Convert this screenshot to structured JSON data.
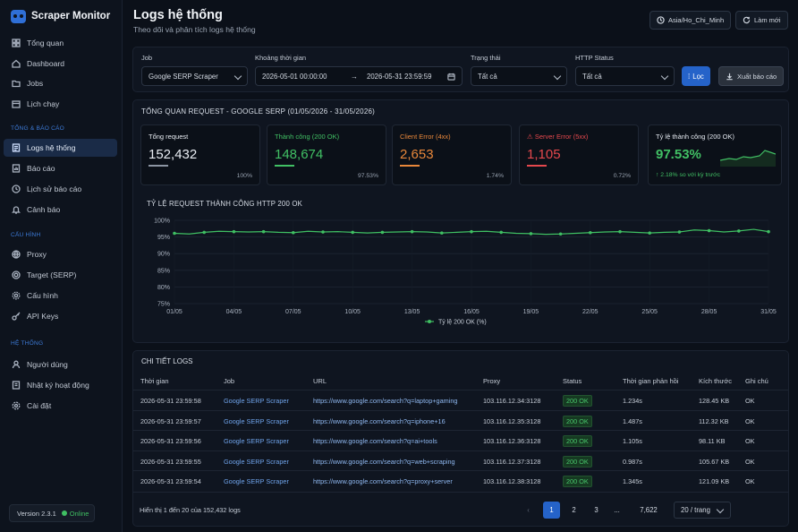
{
  "app": {
    "name": "Scraper Monitor",
    "version": "Version 2.3.1",
    "status": "Online"
  },
  "sidebar": {
    "items": [
      {
        "label": "Tổng quan",
        "icon": "grid-icon"
      },
      {
        "label": "Dashboard",
        "icon": "home-icon"
      },
      {
        "label": "Jobs",
        "icon": "folder-icon"
      },
      {
        "label": "Lịch chạy",
        "icon": "calendar-icon"
      }
    ],
    "sections": [
      "TỔNG & BÁO CÁO",
      "CẤU HÌNH",
      "HỆ THỐNG"
    ],
    "reports": [
      {
        "label": "Logs hệ thống",
        "icon": "logs-icon",
        "active": true
      },
      {
        "label": "Báo cáo",
        "icon": "report-icon"
      },
      {
        "label": "Lịch sử báo cáo",
        "icon": "history-icon"
      },
      {
        "label": "Cảnh báo",
        "icon": "bell-icon"
      }
    ],
    "config": [
      {
        "label": "Proxy",
        "icon": "globe-icon"
      },
      {
        "label": "Target (SERP)",
        "icon": "target-icon"
      },
      {
        "label": "Cấu hình",
        "icon": "gear-icon"
      },
      {
        "label": "API Keys",
        "icon": "key-icon"
      }
    ],
    "system": [
      {
        "label": "Người dùng",
        "icon": "users-icon"
      },
      {
        "label": "Nhật ký hoạt động",
        "icon": "journal-icon"
      },
      {
        "label": "Cài đặt",
        "icon": "settings-icon"
      }
    ]
  },
  "header": {
    "title": "Logs hệ thống",
    "subtitle": "Theo dõi và phân tích logs hệ thống",
    "timezone": "Asia/Ho_Chi_Minh",
    "refresh": "Làm mới"
  },
  "filters": {
    "job_label": "Job",
    "job_value": "Google SERP Scraper",
    "time_label": "Khoảng thời gian",
    "time_from": "2026-05-01 00:00:00",
    "time_to": "2026-05-31 23:59:59",
    "status_label": "Trạng thái",
    "status_value": "Tất cả",
    "http_label": "HTTP Status",
    "http_value": "Tất cả",
    "filter_btn": "Lọc",
    "export_btn": "Xuất báo cáo"
  },
  "overview": {
    "title": "TỔNG QUAN REQUEST - GOOGLE SERP (01/05/2026 - 31/05/2026)",
    "cards": [
      {
        "label": "Tổng request",
        "value": "152,432",
        "pct": "100%",
        "color": "#e8ecf2",
        "bar": "#8c95a3"
      },
      {
        "label": "Thành công (200 OK)",
        "value": "148,674",
        "pct": "97.53%",
        "color": "#41c064",
        "bar": "#41c064"
      },
      {
        "label": "Client Error (4xx)",
        "value": "2,653",
        "pct": "1.74%",
        "color": "#e8873a",
        "bar": "#e8873a"
      },
      {
        "label": "Server Error (5xx)",
        "value": "1,105",
        "pct": "0.72%",
        "color": "#e5484d",
        "bar": "#e5484d"
      }
    ],
    "rate_label": "Tỷ lệ thành công (200 OK)",
    "rate_value": "97.53%",
    "rate_delta": "↑ 2.18% so với kỳ trước"
  },
  "chart_data": {
    "type": "line",
    "title": "TỶ LỆ REQUEST THÀNH CÔNG HTTP 200 OK",
    "series": [
      {
        "name": "Tỷ lệ 200 OK (%)",
        "color": "#3fbf62",
        "values": [
          96.1,
          95.9,
          96.4,
          96.7,
          96.6,
          96.5,
          96.6,
          96.4,
          96.3,
          96.7,
          96.5,
          96.6,
          96.4,
          96.2,
          96.4,
          96.5,
          96.6,
          96.5,
          96.2,
          96.4,
          96.6,
          96.7,
          96.4,
          96.1,
          96.0,
          95.8,
          95.9,
          96.1,
          96.3,
          96.5,
          96.6,
          96.4,
          96.2,
          96.4,
          96.5,
          97.1,
          96.9,
          96.5,
          96.8,
          97.3,
          96.6
        ]
      }
    ],
    "x_ticks": [
      "01/05",
      "04/05",
      "07/05",
      "10/05",
      "13/05",
      "16/05",
      "19/05",
      "22/05",
      "25/05",
      "28/05",
      "31/05"
    ],
    "y_ticks": [
      "100%",
      "95%",
      "90%",
      "85%",
      "80%",
      "75%"
    ],
    "ylim": [
      75,
      100
    ],
    "grid": true,
    "legend": "bottom"
  },
  "logs": {
    "title": "CHI TIẾT LOGS",
    "columns": [
      "Thời gian",
      "Job",
      "URL",
      "Proxy",
      "Status",
      "Thời gian phản hồi",
      "Kích thước",
      "Ghi chú"
    ],
    "rows": [
      [
        "2026-05-31 23:59:58",
        "Google SERP Scraper",
        "https://www.google.com/search?q=laptop+gaming",
        "103.116.12.34:3128",
        "200 OK",
        "1.234s",
        "128.45 KB",
        "OK"
      ],
      [
        "2026-05-31 23:59:57",
        "Google SERP Scraper",
        "https://www.google.com/search?q=iphone+16",
        "103.116.12.35:3128",
        "200 OK",
        "1.487s",
        "112.32 KB",
        "OK"
      ],
      [
        "2026-05-31 23:59:56",
        "Google SERP Scraper",
        "https://www.google.com/search?q=ai+tools",
        "103.116.12.36:3128",
        "200 OK",
        "1.105s",
        "98.11 KB",
        "OK"
      ],
      [
        "2026-05-31 23:59:55",
        "Google SERP Scraper",
        "https://www.google.com/search?q=web+scraping",
        "103.116.12.37:3128",
        "200 OK",
        "0.987s",
        "105.67 KB",
        "OK"
      ],
      [
        "2026-05-31 23:59:54",
        "Google SERP Scraper",
        "https://www.google.com/search?q=proxy+server",
        "103.116.12.38:3128",
        "200 OK",
        "1.345s",
        "121.09 KB",
        "OK"
      ]
    ],
    "summary": "Hiển thị 1 đến 20 của 152,432 logs",
    "pages": [
      "1",
      "2",
      "3",
      "...",
      "7,622"
    ],
    "per_page": "20 / trang"
  }
}
